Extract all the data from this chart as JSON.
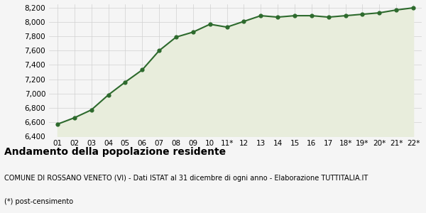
{
  "x_labels": [
    "01",
    "02",
    "03",
    "04",
    "05",
    "06",
    "07",
    "08",
    "09",
    "10",
    "11*",
    "12",
    "13",
    "14",
    "15",
    "16",
    "17",
    "18*",
    "19*",
    "20*",
    "21*",
    "22*"
  ],
  "y_values": [
    6570,
    6660,
    6770,
    6980,
    7160,
    7330,
    7600,
    7790,
    7860,
    7970,
    7930,
    8010,
    8090,
    8070,
    8090,
    8090,
    8070,
    8090,
    8110,
    8130,
    8170,
    8200
  ],
  "line_color": "#2d6a2d",
  "fill_color": "#e8eddc",
  "marker_color": "#2d6a2d",
  "bg_color": "#f5f5f5",
  "grid_color": "#d0d0d0",
  "ylim": [
    6400,
    8250
  ],
  "yticks": [
    6400,
    6600,
    6800,
    7000,
    7200,
    7400,
    7600,
    7800,
    8000,
    8200
  ],
  "title_main": "Andamento della popolazione residente",
  "title_sub1": "COMUNE DI ROSSANO VENETO (VI) - Dati ISTAT al 31 dicembre di ogni anno - Elaborazione TUTTITALIA.IT",
  "title_sub2": "(*) post-censimento",
  "title_main_fontsize": 10,
  "title_sub_fontsize": 7,
  "tick_fontsize": 7.5
}
